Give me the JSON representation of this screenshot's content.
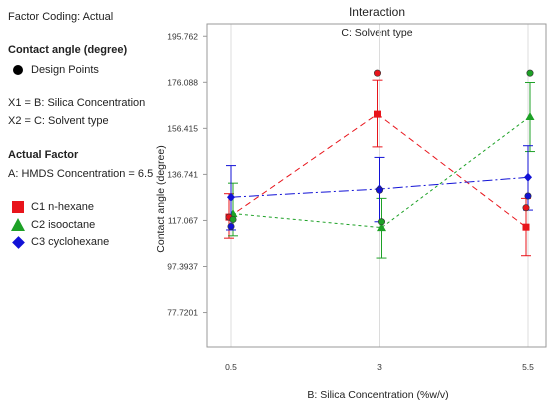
{
  "sidebar": {
    "factor_coding": "Factor Coding: Actual",
    "response_title": "Contact angle (degree)",
    "design_points_label": "Design Points",
    "x1_label": "X1 = B: Silica Concentration",
    "x2_label": "X2 = C: Solvent type",
    "actual_factor_title": "Actual Factor",
    "actual_factor_value": "A: HMDS Concentration = 6.5",
    "legend": [
      {
        "label": "C1 n-hexane",
        "color": "#e8141b",
        "marker": "square"
      },
      {
        "label": "C2 isooctane",
        "color": "#1da126",
        "marker": "triangle"
      },
      {
        "label": "C3 cyclohexane",
        "color": "#1212d6",
        "marker": "diamond"
      }
    ]
  },
  "chart_data": {
    "type": "line",
    "title": "Interaction",
    "subtitle": "C: Solvent type",
    "xlabel": "B: Silica Concentration (%w/v)",
    "ylabel": "Contact angle (degree)",
    "x": [
      0.5,
      3,
      5.5
    ],
    "x_tick_labels": [
      "0.5",
      "3",
      "5.5"
    ],
    "ylim": [
      63.0,
      201.0
    ],
    "y_ticks": [
      77.7201,
      97.3937,
      117.067,
      136.741,
      156.415,
      176.088,
      195.762
    ],
    "y_tick_labels": [
      "77.7201",
      "97.3937",
      "117.067",
      "136.741",
      "156.415",
      "176.088",
      "195.762"
    ],
    "series": [
      {
        "name": "C1 n-hexane",
        "color": "#e8141b",
        "marker": "square",
        "dash": "6,4",
        "values": [
          118.5,
          162.5,
          114.2
        ],
        "ci_low": [
          109.5,
          148.5,
          102.0
        ],
        "ci_high": [
          128.5,
          177.0,
          126.5
        ],
        "points": [
          {
            "x": 0.5,
            "y": 118.5
          },
          {
            "x": 3,
            "y": 180.0
          },
          {
            "x": 5.5,
            "y": 122.5
          }
        ]
      },
      {
        "name": "C2 isooctane",
        "color": "#1da126",
        "marker": "triangle",
        "dash": "3,3",
        "values": [
          120.0,
          114.0,
          161.5
        ],
        "ci_low": [
          110.5,
          101.0,
          146.5
        ],
        "ci_high": [
          133.0,
          126.5,
          176.0
        ],
        "points": [
          {
            "x": 0.5,
            "y": 117.5
          },
          {
            "x": 3,
            "y": 116.5
          },
          {
            "x": 5.5,
            "y": 180.0
          }
        ]
      },
      {
        "name": "C3 cyclohexane",
        "color": "#1212d6",
        "marker": "diamond",
        "dash": "10,3,2,3",
        "values": [
          127.0,
          130.5,
          135.5
        ],
        "ci_low": [
          113.0,
          116.5,
          121.5
        ],
        "ci_high": [
          140.5,
          144.0,
          149.0
        ],
        "points": [
          {
            "x": 0.5,
            "y": 114.5
          },
          {
            "x": 3,
            "y": 130.0
          },
          {
            "x": 5.5,
            "y": 127.5
          }
        ]
      }
    ],
    "design_point_color": "#000000"
  }
}
